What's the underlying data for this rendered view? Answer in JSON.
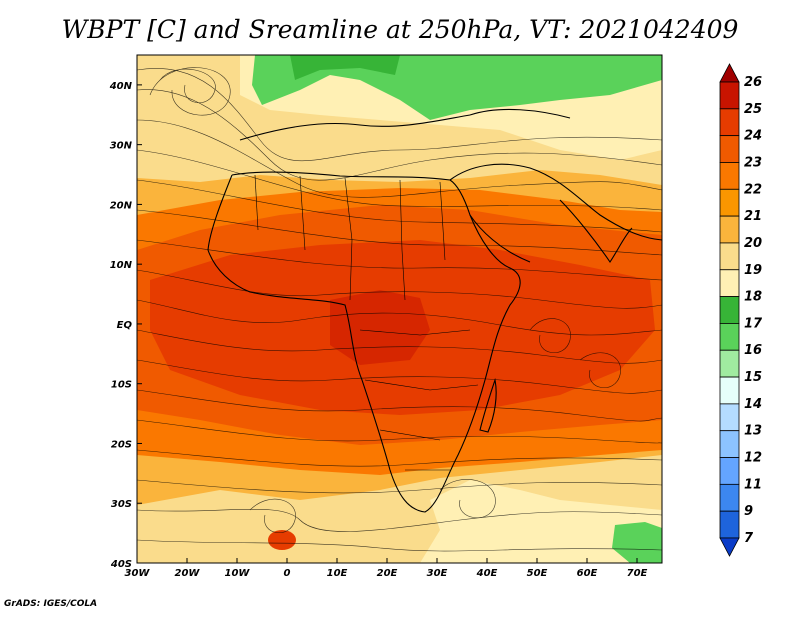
{
  "title": "WBPT [C] and Sreamline at 250hPa, VT: 2021042409",
  "credit": "GrADS: IGES/COLA",
  "axes": {
    "lon_range": [
      -30,
      75
    ],
    "lat_range": [
      -40,
      45
    ],
    "x_ticks": [
      {
        "value": -30,
        "label": "30W"
      },
      {
        "value": -20,
        "label": "20W"
      },
      {
        "value": -10,
        "label": "10W"
      },
      {
        "value": 0,
        "label": "0"
      },
      {
        "value": 10,
        "label": "10E"
      },
      {
        "value": 20,
        "label": "20E"
      },
      {
        "value": 30,
        "label": "30E"
      },
      {
        "value": 40,
        "label": "40E"
      },
      {
        "value": 50,
        "label": "50E"
      },
      {
        "value": 60,
        "label": "60E"
      },
      {
        "value": 70,
        "label": "70E"
      }
    ],
    "y_ticks": [
      {
        "value": 40,
        "label": "40N"
      },
      {
        "value": 30,
        "label": "30N"
      },
      {
        "value": 20,
        "label": "20N"
      },
      {
        "value": 10,
        "label": "10N"
      },
      {
        "value": 0,
        "label": "EQ"
      },
      {
        "value": -10,
        "label": "10S"
      },
      {
        "value": -20,
        "label": "20S"
      },
      {
        "value": -30,
        "label": "30S"
      },
      {
        "value": -40,
        "label": "40S"
      }
    ]
  },
  "colorbar": {
    "levels": [
      {
        "label": "26",
        "color": "#a00000"
      },
      {
        "label": "25",
        "color": "#c81400"
      },
      {
        "label": "24",
        "color": "#e63c00"
      },
      {
        "label": "23",
        "color": "#f05a00"
      },
      {
        "label": "22",
        "color": "#fa7800"
      },
      {
        "label": "21",
        "color": "#fa9600"
      },
      {
        "label": "20",
        "color": "#fab43c"
      },
      {
        "label": "19",
        "color": "#fadc8c"
      },
      {
        "label": "18",
        "color": "#fff0b4"
      },
      {
        "label": "17",
        "color": "#37b437"
      },
      {
        "label": "16",
        "color": "#5ad25a"
      },
      {
        "label": "15",
        "color": "#a0eba0"
      },
      {
        "label": "14",
        "color": "#e6fffa"
      },
      {
        "label": "13",
        "color": "#b4dcff"
      },
      {
        "label": "12",
        "color": "#8cc3ff"
      },
      {
        "label": "11",
        "color": "#64a5ff"
      },
      {
        "label": "9",
        "color": "#3c87f0"
      },
      {
        "label": "7",
        "color": "#1e64dc"
      },
      {
        "label": "",
        "color": "#0a3cc8"
      }
    ]
  },
  "field_colors": {
    "very_warm": "#e63c00",
    "warm": "#f05a00",
    "warm_mid": "#fa7800",
    "mild": "#fab43c",
    "cool": "#fadc8c",
    "cooler": "#fff0b4",
    "green": "#5ad25a",
    "dark_green": "#37b437"
  }
}
